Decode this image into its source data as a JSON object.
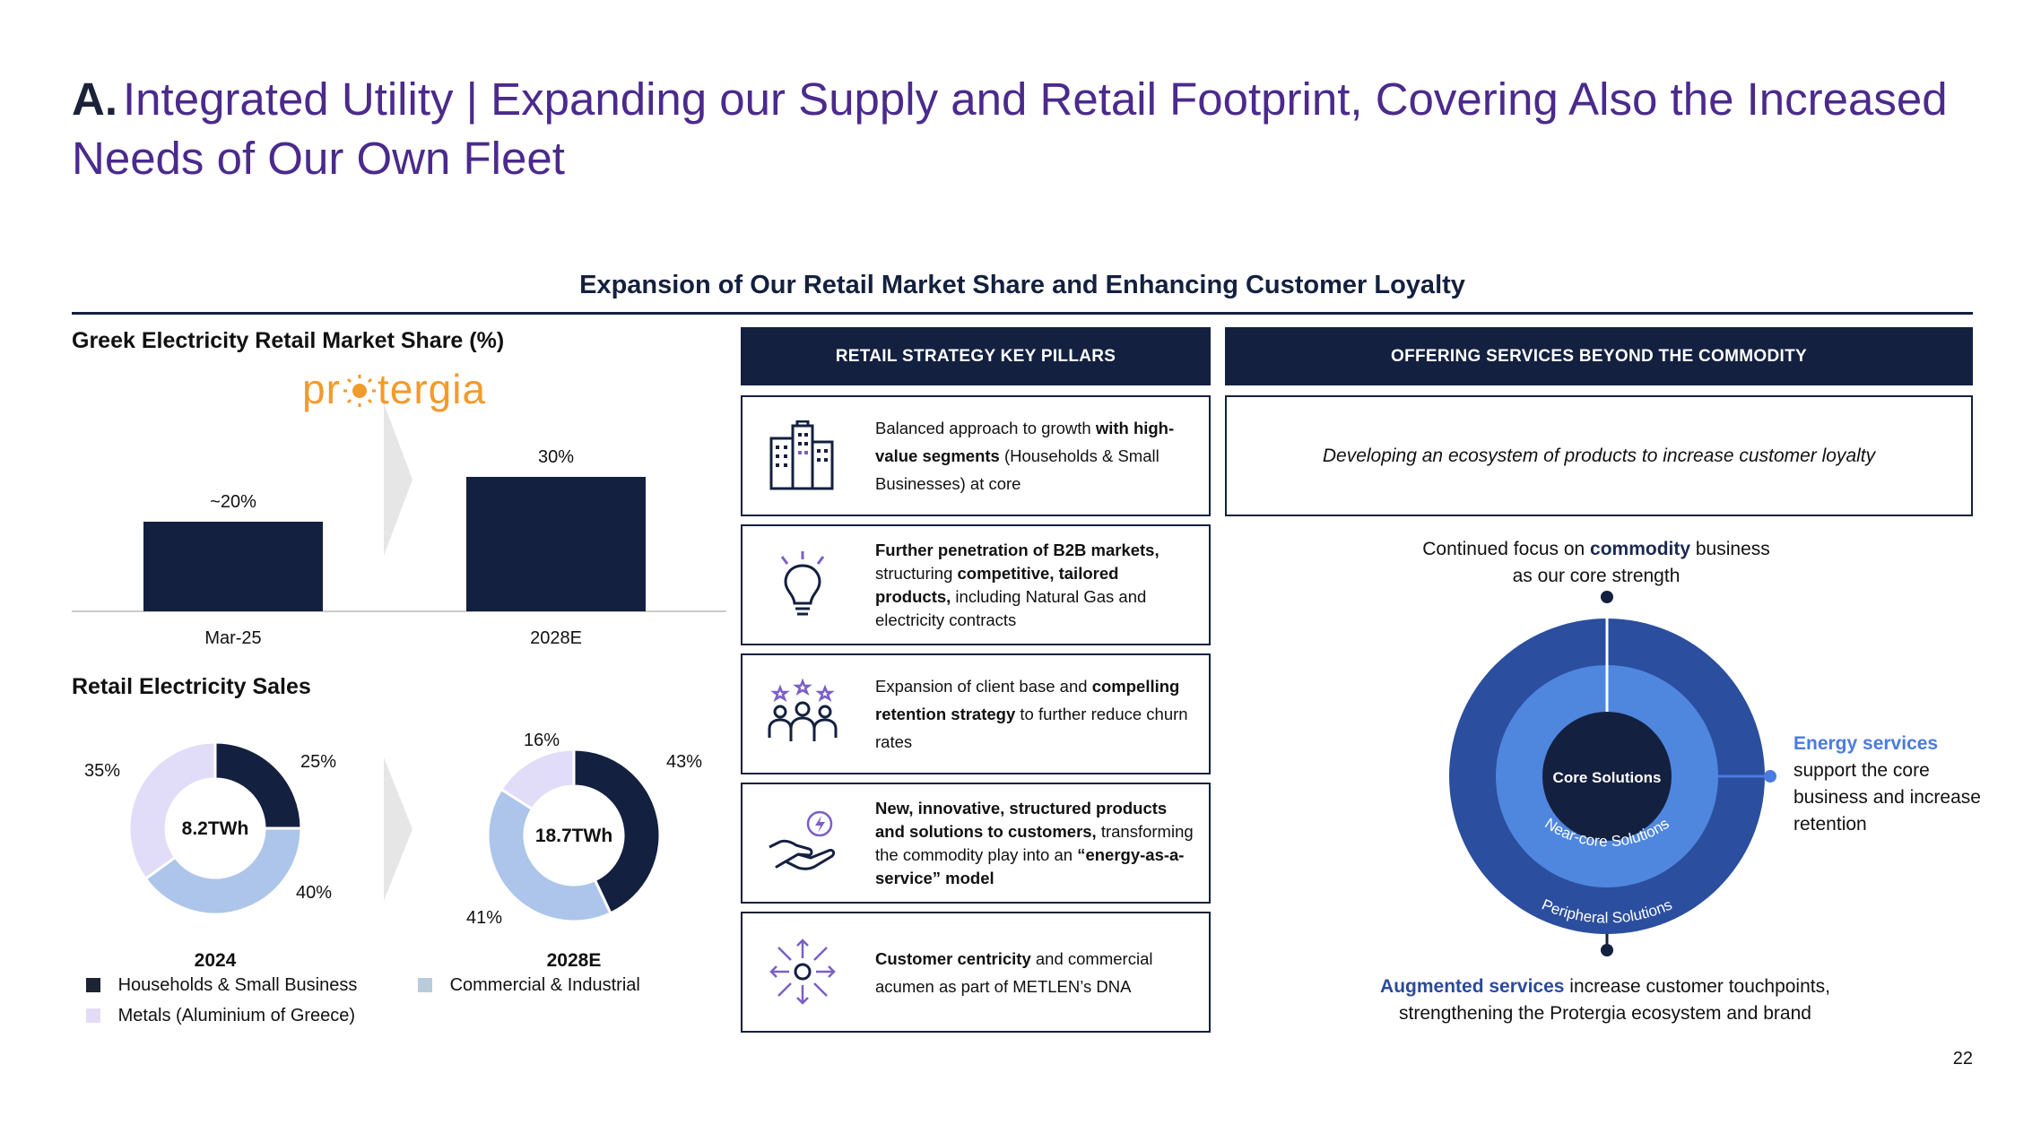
{
  "slide": {
    "title_prefix": "A.",
    "title": "Integrated Utility | Expanding our Supply and Retail Footprint, Covering Also the Increased Needs of Our Own Fleet",
    "section_heading": "Expansion of Our Retail Market Share and Enhancing Customer Loyalty",
    "page_number": "22"
  },
  "market_share": {
    "heading": "Greek Electricity Retail Market Share (%)",
    "brand_logo_text": "protergia",
    "chart_data": {
      "type": "bar",
      "categories": [
        "Mar-25",
        "2028E"
      ],
      "values": [
        20,
        30
      ],
      "value_labels": [
        "~20%",
        "30%"
      ],
      "title": "Greek Electricity Retail Market Share (%)",
      "xlabel": "",
      "ylabel": "",
      "ylim": [
        0,
        30
      ],
      "grid": false,
      "colors": [
        "#14203f"
      ]
    }
  },
  "retail_sales": {
    "heading": "Retail Electricity Sales",
    "chart_data": [
      {
        "type": "pie",
        "title": "2024",
        "center_label": "8.2TWh",
        "categories": [
          "Households & Small Business",
          "Commercial & Industrial",
          "Metals (Aluminium of Greece)"
        ],
        "values": [
          25,
          40,
          35
        ],
        "value_labels": [
          "25%",
          "40%",
          "35%"
        ],
        "colors": [
          "#14203f",
          "#adc5ea",
          "#e1dcf7"
        ]
      },
      {
        "type": "pie",
        "title": "2028E",
        "center_label": "18.7TWh",
        "categories": [
          "Households & Small Business",
          "Commercial & Industrial",
          "Metals (Aluminium of Greece)"
        ],
        "values": [
          43,
          41,
          16
        ],
        "value_labels": [
          "43%",
          "41%",
          "16%"
        ],
        "colors": [
          "#14203f",
          "#adc5ea",
          "#e1dcf7"
        ]
      }
    ],
    "legend": [
      {
        "label": "Households & Small Business",
        "color": "#1c2333"
      },
      {
        "label": "Commercial & Industrial",
        "color": "#b9ccd9"
      },
      {
        "label": "Metals (Aluminium of Greece)",
        "color": "#e3dcf5"
      }
    ]
  },
  "pillars": {
    "header": "RETAIL STRATEGY KEY PILLARS",
    "items": [
      {
        "icon": "buildings-icon",
        "segments": [
          {
            "t": "Balanced approach to growth ",
            "b": false
          },
          {
            "t": "with high-value segments",
            "b": true
          },
          {
            "t": " (Households & Small Businesses) at core",
            "b": false
          }
        ]
      },
      {
        "icon": "lightbulb-icon",
        "segments": [
          {
            "t": "Further penetration of B2B markets,",
            "b": true
          },
          {
            "t": " structuring ",
            "b": false
          },
          {
            "t": "competitive, tailored products,",
            "b": true
          },
          {
            "t": " including Natural Gas and electricity contracts",
            "b": false
          }
        ]
      },
      {
        "icon": "customers-stars-icon",
        "segments": [
          {
            "t": "Expansion of client base and ",
            "b": false
          },
          {
            "t": "compelling retention strategy",
            "b": true
          },
          {
            "t": " to further reduce churn rates",
            "b": false
          }
        ]
      },
      {
        "icon": "energy-hand-icon",
        "segments": [
          {
            "t": "New, innovative, structured products and solutions to customers,",
            "b": true
          },
          {
            "t": " transforming the commodity play into an ",
            "b": false
          },
          {
            "t": "“energy-as-a-service” model",
            "b": true
          }
        ]
      },
      {
        "icon": "customer-centricity-icon",
        "segments": [
          {
            "t": "Customer centricity",
            "b": true
          },
          {
            "t": " and commercial acumen as part of METLEN’s DNA",
            "b": false
          }
        ]
      }
    ]
  },
  "offering": {
    "header": "OFFERING SERVICES BEYOND THE COMMODITY",
    "box_text": "Developing an ecosystem of products to increase customer loyalty",
    "top_note_1": "Continued focus on ",
    "top_note_bold": "commodity",
    "top_note_2": " business",
    "top_note_line2": "as our core strength",
    "circle_core": "Core Solutions",
    "circle_mid": "Near-core Solutions",
    "circle_outer": "Peripheral Solutions",
    "right_note_bold": "Energy services",
    "right_note_rest": "support the core business and increase retention",
    "bottom_note_bold": "Augmented services",
    "bottom_note_rest": " increase customer touchpoints,",
    "bottom_note_line2": "strengthening the Protergia ecosystem and brand",
    "colors": {
      "outer": "#2b4e9e",
      "mid": "#4f86de",
      "core": "#14203f",
      "accent": "#4a7be0"
    }
  }
}
